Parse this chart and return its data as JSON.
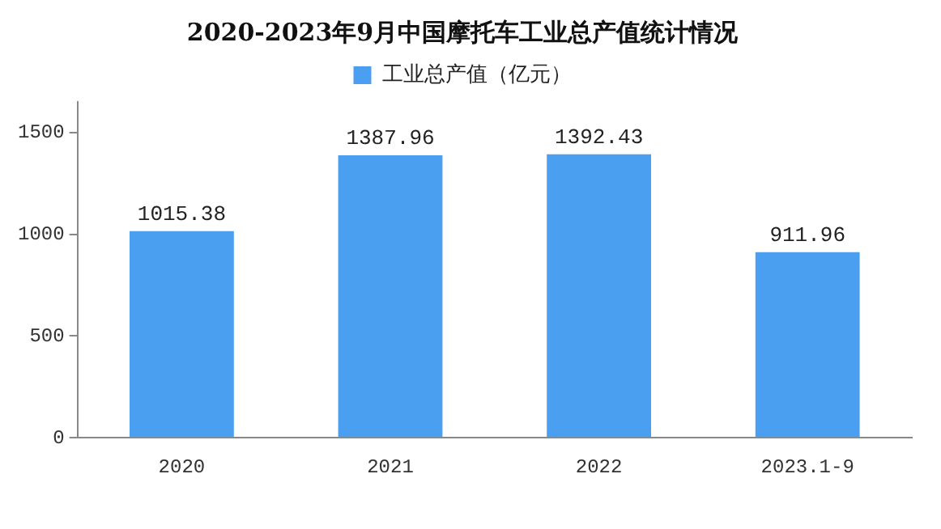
{
  "chart_data": {
    "type": "bar",
    "title": "2020-2023年9月中国摩托车工业总产值统计情况",
    "categories": [
      "2020",
      "2021",
      "2022",
      "2023.1-9"
    ],
    "series": [
      {
        "name": "工业总产值（亿元）",
        "color": "#4a9ff0",
        "values": [
          1015.38,
          1387.96,
          1392.43,
          911.96
        ]
      }
    ],
    "ylim": [
      0,
      1650
    ],
    "yticks": [
      0,
      500,
      1000,
      1500
    ],
    "grid": false,
    "legend": "top",
    "data_labels": true
  }
}
